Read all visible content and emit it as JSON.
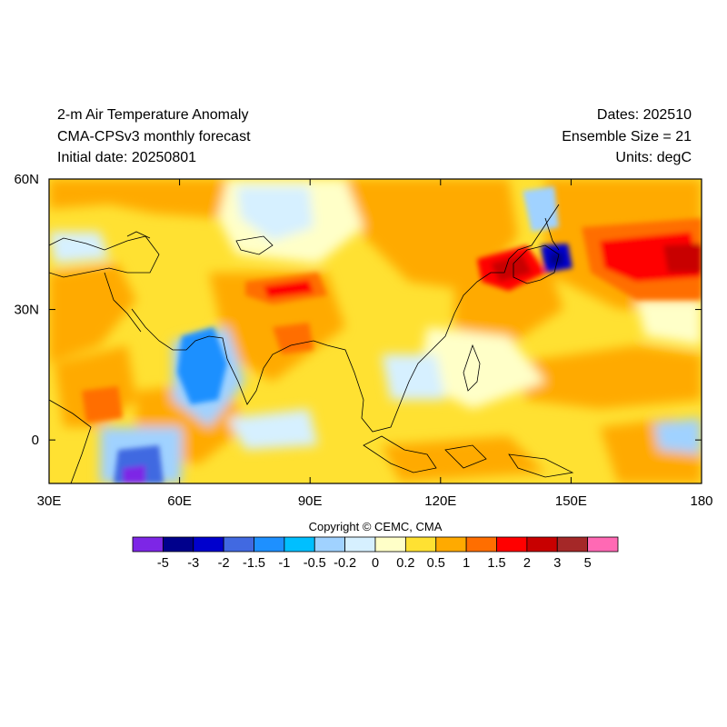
{
  "header": {
    "left": [
      "2-m Air Temperature Anomaly",
      "CMA-CPSv3 monthly forecast",
      "Initial date: 20250801"
    ],
    "right": [
      "Dates: 202510",
      "Ensemble Size = 21",
      "Units: degC"
    ]
  },
  "map": {
    "region": "Asia and western North Pacific",
    "lon_range": [
      30,
      180
    ],
    "lat_range": [
      -10,
      60
    ],
    "x_ticks": [
      {
        "lon": 30,
        "label": "30E"
      },
      {
        "lon": 60,
        "label": "60E"
      },
      {
        "lon": 90,
        "label": "90E"
      },
      {
        "lon": 120,
        "label": "120E"
      },
      {
        "lon": 150,
        "label": "150E"
      },
      {
        "lon": 180,
        "label": "180"
      }
    ],
    "y_ticks": [
      {
        "lat": 60,
        "label": "60N"
      },
      {
        "lat": 30,
        "label": "30N"
      },
      {
        "lat": 0,
        "label": "0"
      }
    ],
    "anomaly_regions": [
      {
        "name": "north-pacific-warm",
        "lon": [
          150,
          180
        ],
        "lat": [
          35,
          50
        ],
        "level": "1.5 to 3"
      },
      {
        "name": "japan-sea-warm",
        "lon": [
          128,
          142
        ],
        "lat": [
          36,
          44
        ],
        "level": "1.5 to 3"
      },
      {
        "name": "hokkaido-cold",
        "lon": [
          140,
          147
        ],
        "lat": [
          37,
          43
        ],
        "level": "-3 to -1.5"
      },
      {
        "name": "tibet-warm",
        "lon": [
          76,
          93
        ],
        "lat": [
          30,
          37
        ],
        "level": "1 to 2"
      },
      {
        "name": "arabian-sea-cold",
        "lon": [
          52,
          72
        ],
        "lat": [
          5,
          25
        ],
        "level": "-1 to -0.5"
      },
      {
        "name": "indian-ocean-cold",
        "lon": [
          40,
          55
        ],
        "lat": [
          -10,
          0
        ],
        "level": "-3 to -1"
      }
    ]
  },
  "copyright": "Copyright © CEMC, CMA",
  "colorbar": {
    "colors": [
      "#7d26e6",
      "#00008c",
      "#0000cd",
      "#4169e1",
      "#1e90ff",
      "#00bfff",
      "#a0d2ff",
      "#d6f0ff",
      "#ffffc8",
      "#ffe132",
      "#ffaa00",
      "#ff6e00",
      "#ff0000",
      "#c80000",
      "#a52828",
      "#ff69b4"
    ],
    "labels": [
      "-5",
      "-3",
      "-2",
      "-1.5",
      "-1",
      "-0.5",
      "-0.2",
      "0",
      "0.2",
      "0.5",
      "1",
      "1.5",
      "2",
      "3",
      "5"
    ]
  }
}
